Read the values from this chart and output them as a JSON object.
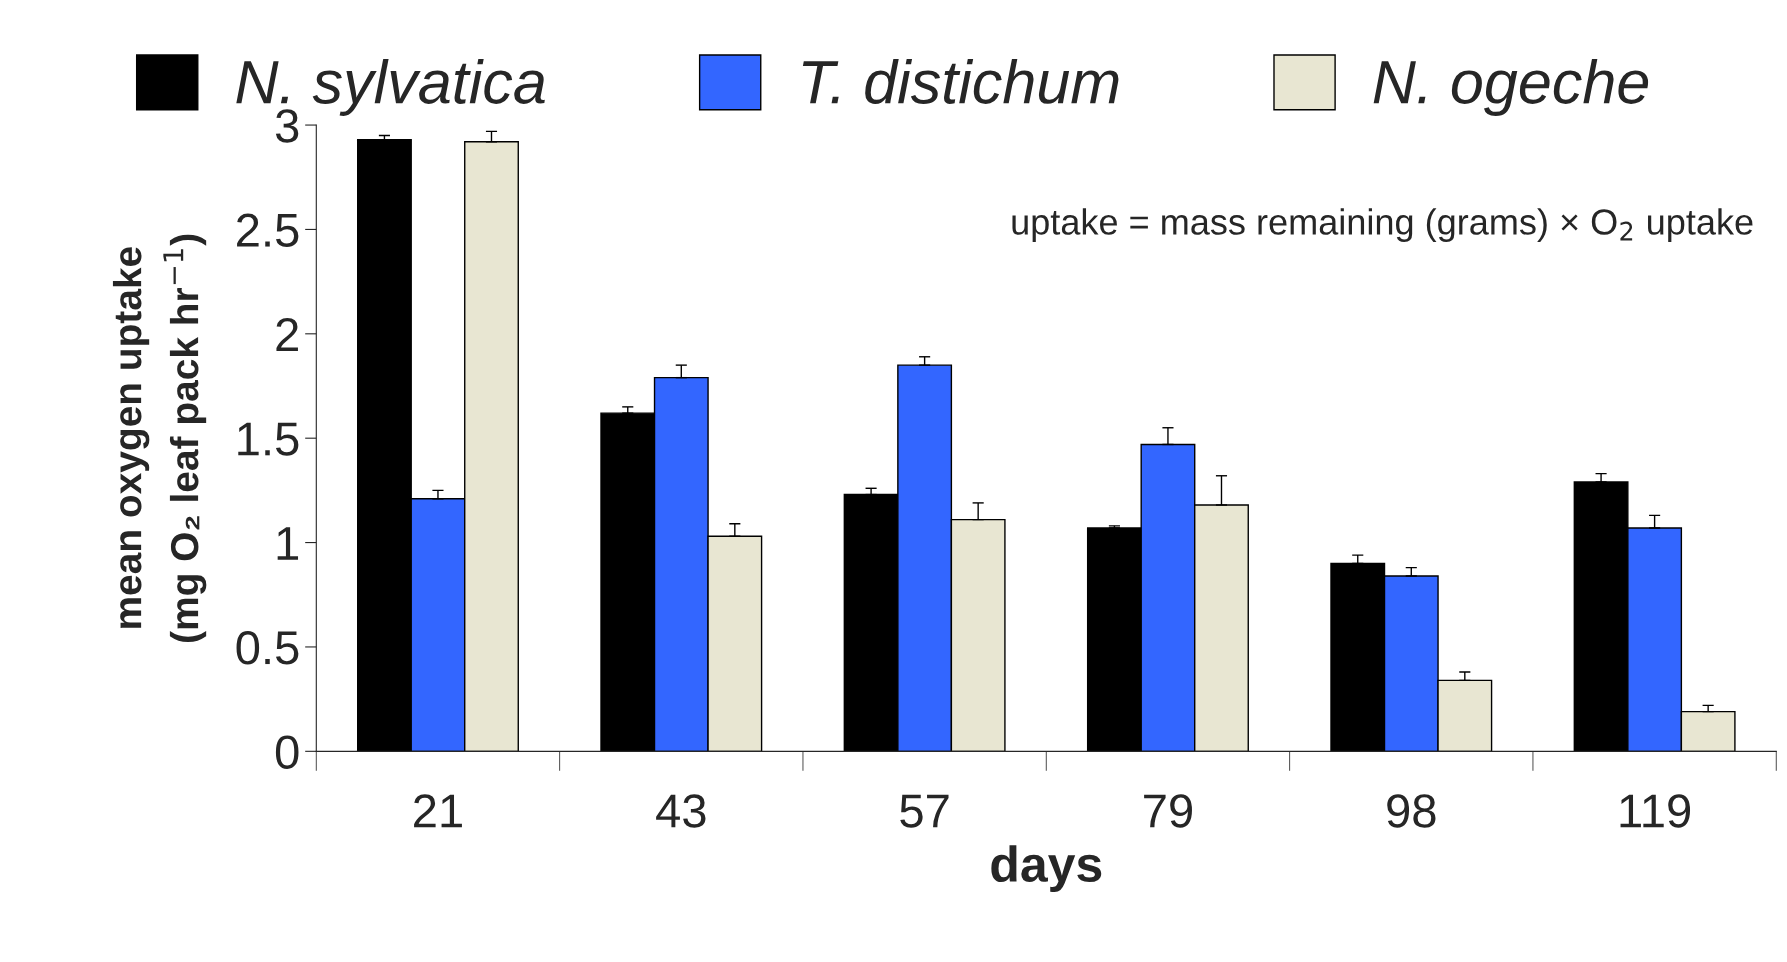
{
  "chart_data": {
    "type": "bar",
    "xlabel": "days",
    "ylabel": "mean oxygen uptake\n(mg O₂ leaf pack hr$^{−1}$)",
    "categories": [
      "21",
      "43",
      "57",
      "79",
      "98",
      "119"
    ],
    "series": [
      {
        "name": "N. sylvatica",
        "color": "#000000",
        "values": [
          2.93,
          1.62,
          1.23,
          1.07,
          0.9,
          1.29
        ],
        "errors": [
          [
            2.93,
            2.95
          ],
          [
            1.62,
            1.65
          ],
          [
            1.23,
            1.26
          ],
          [
            1.07,
            1.08
          ],
          [
            0.9,
            0.94
          ],
          [
            1.29,
            1.33
          ]
        ]
      },
      {
        "name": "T. distichum",
        "color": "#3366ff",
        "values": [
          1.21,
          1.79,
          1.85,
          1.47,
          0.84,
          1.07
        ],
        "errors": [
          [
            1.21,
            1.25
          ],
          [
            1.79,
            1.85
          ],
          [
            1.85,
            1.89
          ],
          [
            1.47,
            1.55
          ],
          [
            0.84,
            0.88
          ],
          [
            1.07,
            1.13
          ]
        ]
      },
      {
        "name": "N. ogeche",
        "color": "#e8e6d2",
        "values": [
          2.92,
          1.03,
          1.11,
          1.18,
          0.34,
          0.19
        ],
        "errors": [
          [
            2.92,
            2.97
          ],
          [
            1.03,
            1.09
          ],
          [
            1.11,
            1.19
          ],
          [
            1.18,
            1.32
          ],
          [
            0.34,
            0.38
          ],
          [
            0.19,
            0.22
          ]
        ]
      }
    ],
    "ylim": [
      0,
      3
    ],
    "yticks": [
      0,
      0.5,
      1,
      1.5,
      2,
      2.5,
      3
    ],
    "grid": false,
    "legend": "top",
    "annotations": [
      {
        "text": "uptake = mass remaining (grams) × O$_{2}$ uptake"
      }
    ]
  }
}
